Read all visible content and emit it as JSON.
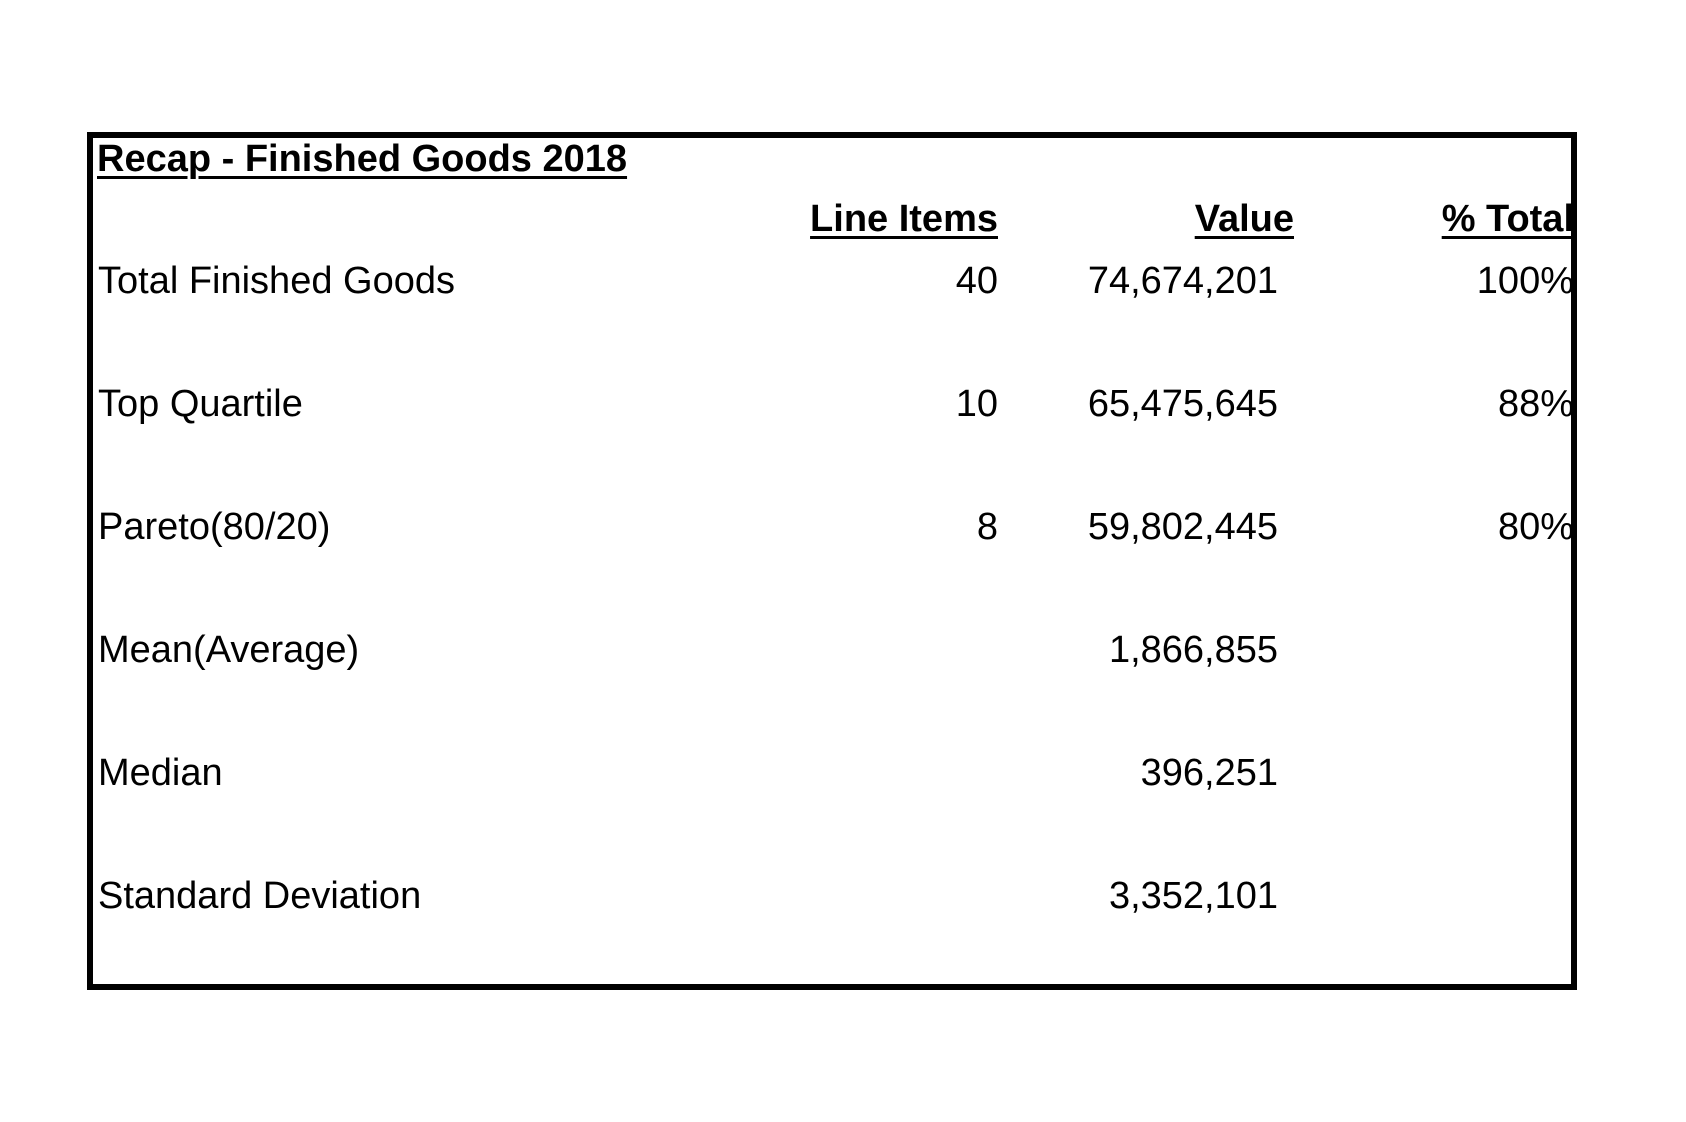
{
  "title": "Recap - Finished Goods 2018",
  "headers": {
    "line_items": "Line Items",
    "value": "Value",
    "pct_total": "% Total"
  },
  "rows": [
    {
      "label": "Total Finished Goods",
      "line_items": "40",
      "value": "74,674,201",
      "pct_total": "100%"
    },
    {
      "label": "Top Quartile",
      "line_items": "10",
      "value": "65,475,645",
      "pct_total": "88%"
    },
    {
      "label": "Pareto(80/20)",
      "line_items": "8",
      "value": "59,802,445",
      "pct_total": "80%"
    },
    {
      "label": "Mean(Average)",
      "line_items": "",
      "value": "1,866,855",
      "pct_total": ""
    },
    {
      "label": "Median",
      "line_items": "",
      "value": "396,251",
      "pct_total": ""
    },
    {
      "label": "Standard Deviation",
      "line_items": "",
      "value": "3,352,101",
      "pct_total": ""
    }
  ]
}
